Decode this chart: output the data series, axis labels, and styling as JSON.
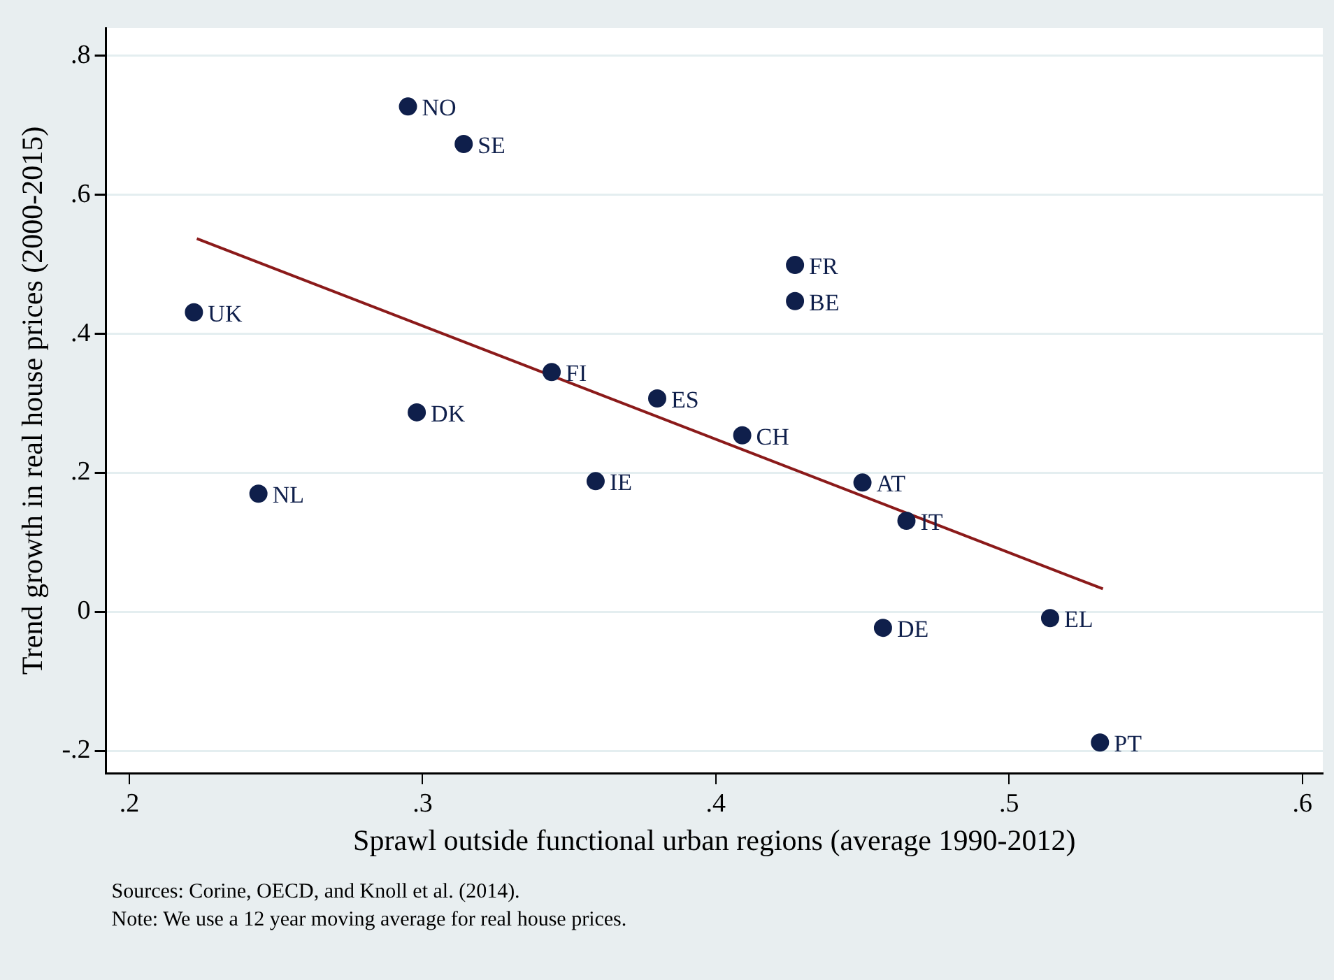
{
  "chart_data": {
    "type": "scatter",
    "xlabel": "Sprawl outside functional urban regions (average 1990-2012)",
    "ylabel": "Trend growth in real house prices (2000-2015)",
    "xlim": [
      0.192,
      0.607
    ],
    "ylim": [
      -0.232,
      0.84
    ],
    "xticks": [
      {
        "value": 0.2,
        "label": ".2"
      },
      {
        "value": 0.3,
        "label": ".3"
      },
      {
        "value": 0.4,
        "label": ".4"
      },
      {
        "value": 0.5,
        "label": ".5"
      },
      {
        "value": 0.6,
        "label": ".6"
      }
    ],
    "yticks": [
      {
        "value": -0.2,
        "label": "-.2"
      },
      {
        "value": 0,
        "label": "0"
      },
      {
        "value": 0.2,
        "label": ".2"
      },
      {
        "value": 0.4,
        "label": ".4"
      },
      {
        "value": 0.6,
        "label": ".6"
      },
      {
        "value": 0.8,
        "label": ".8"
      }
    ],
    "grid": "y",
    "legend": false,
    "marker": "circle",
    "series": [
      {
        "color": "#0f1f4b",
        "x": [
          0.295,
          0.314,
          0.222,
          0.344,
          0.38,
          0.298,
          0.244,
          0.359,
          0.427,
          0.427,
          0.409,
          0.45,
          0.465,
          0.457,
          0.514,
          0.531
        ],
        "values": [
          0.727,
          0.673,
          0.431,
          0.345,
          0.307,
          0.287,
          0.17,
          0.188,
          0.499,
          0.447,
          0.254,
          0.186,
          0.131,
          -0.023,
          -0.009,
          -0.188
        ]
      },
      {
        "type": "line",
        "color": "#8b1a1a",
        "marker": "none",
        "x": [
          0.223,
          0.532
        ],
        "values": [
          0.537,
          0.033
        ]
      }
    ],
    "annotations": [
      {
        "text": "NO",
        "x": 0.295,
        "y": 0.727
      },
      {
        "text": "SE",
        "x": 0.314,
        "y": 0.673
      },
      {
        "text": "UK",
        "x": 0.222,
        "y": 0.431
      },
      {
        "text": "FI",
        "x": 0.344,
        "y": 0.345
      },
      {
        "text": "ES",
        "x": 0.38,
        "y": 0.307
      },
      {
        "text": "DK",
        "x": 0.298,
        "y": 0.287
      },
      {
        "text": "NL",
        "x": 0.244,
        "y": 0.17
      },
      {
        "text": "IE",
        "x": 0.359,
        "y": 0.188
      },
      {
        "text": "FR",
        "x": 0.427,
        "y": 0.499
      },
      {
        "text": "BE",
        "x": 0.427,
        "y": 0.447
      },
      {
        "text": "CH",
        "x": 0.409,
        "y": 0.254
      },
      {
        "text": "AT",
        "x": 0.45,
        "y": 0.186
      },
      {
        "text": "IT",
        "x": 0.465,
        "y": 0.131
      },
      {
        "text": "DE",
        "x": 0.457,
        "y": -0.023
      },
      {
        "text": "EL",
        "x": 0.514,
        "y": -0.009
      },
      {
        "text": "PT",
        "x": 0.531,
        "y": -0.188
      },
      "Sources: Corine, OECD, and Knoll et al. (2014).",
      "Note: We use a 12 year moving average for real house prices."
    ]
  }
}
